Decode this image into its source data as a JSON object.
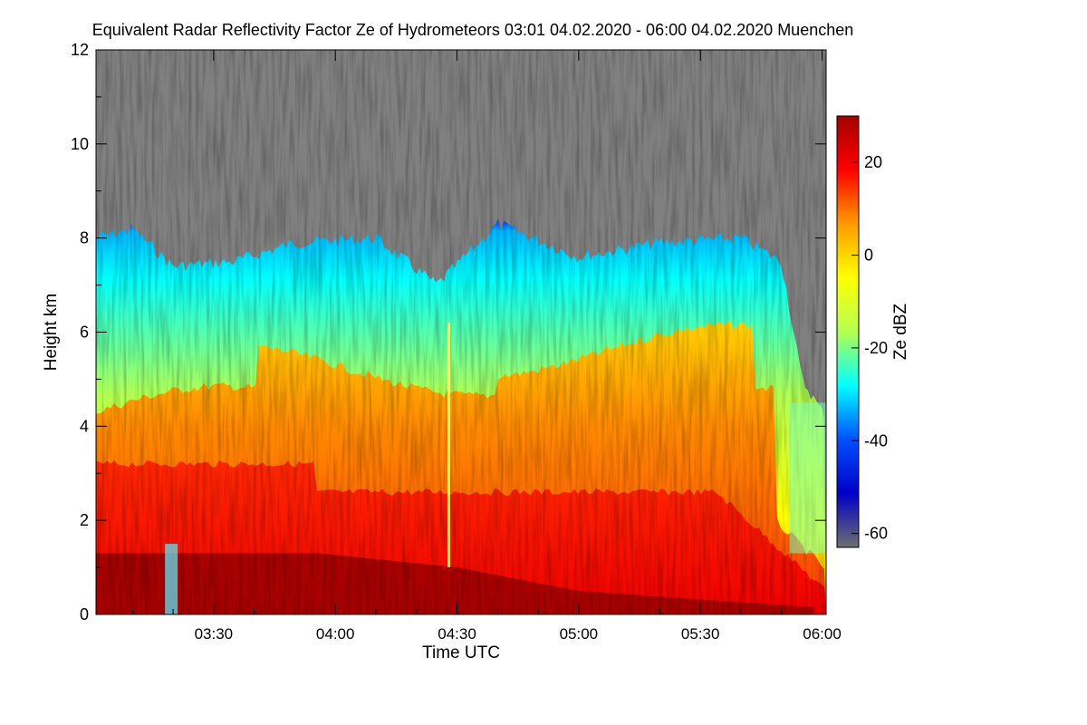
{
  "chart_data": {
    "type": "heatmap",
    "title": "Equivalent Radar Reflectivity Factor Ze of Hydrometeors   03:01 04.02.2020 - 06:00 04.02.2020 Muenchen",
    "xlabel": "Time UTC",
    "ylabel": "Height km",
    "colorbar_label": "Ze dBZ",
    "x_range": [
      "03:01",
      "06:01"
    ],
    "y_range": [
      0,
      12
    ],
    "z_range": [
      -63,
      30
    ],
    "x_ticks": [
      {
        "label": "03:30",
        "value": "03:30"
      },
      {
        "label": "04:00",
        "value": "04:00"
      },
      {
        "label": "04:30",
        "value": "04:30"
      },
      {
        "label": "05:00",
        "value": "05:00"
      },
      {
        "label": "05:30",
        "value": "05:30"
      },
      {
        "label": "06:00",
        "value": "06:00"
      }
    ],
    "y_ticks": [
      0,
      2,
      4,
      6,
      8,
      10,
      12
    ],
    "colorbar_ticks": [
      20,
      0,
      -20,
      -40,
      -60
    ],
    "no_signal_color": "#808080",
    "colormap": [
      "#6e6e6e",
      "#0000c8",
      "#0050ff",
      "#00ffff",
      "#b4ff50",
      "#ffff00",
      "#ff9b00",
      "#ff0000",
      "#a50000"
    ],
    "cloud_top_km": [
      {
        "time": "03:01",
        "height": 8.0
      },
      {
        "time": "03:10",
        "height": 8.2
      },
      {
        "time": "03:20",
        "height": 7.4
      },
      {
        "time": "03:35",
        "height": 7.5
      },
      {
        "time": "03:50",
        "height": 7.9
      },
      {
        "time": "04:10",
        "height": 8.0
      },
      {
        "time": "04:25",
        "height": 7.0
      },
      {
        "time": "04:40",
        "height": 8.3
      },
      {
        "time": "05:00",
        "height": 7.6
      },
      {
        "time": "05:20",
        "height": 7.9
      },
      {
        "time": "05:40",
        "height": 8.0
      },
      {
        "time": "05:50",
        "height": 7.5
      },
      {
        "time": "05:55",
        "height": 5.0
      },
      {
        "time": "06:00",
        "height": 4.3
      }
    ]
  }
}
